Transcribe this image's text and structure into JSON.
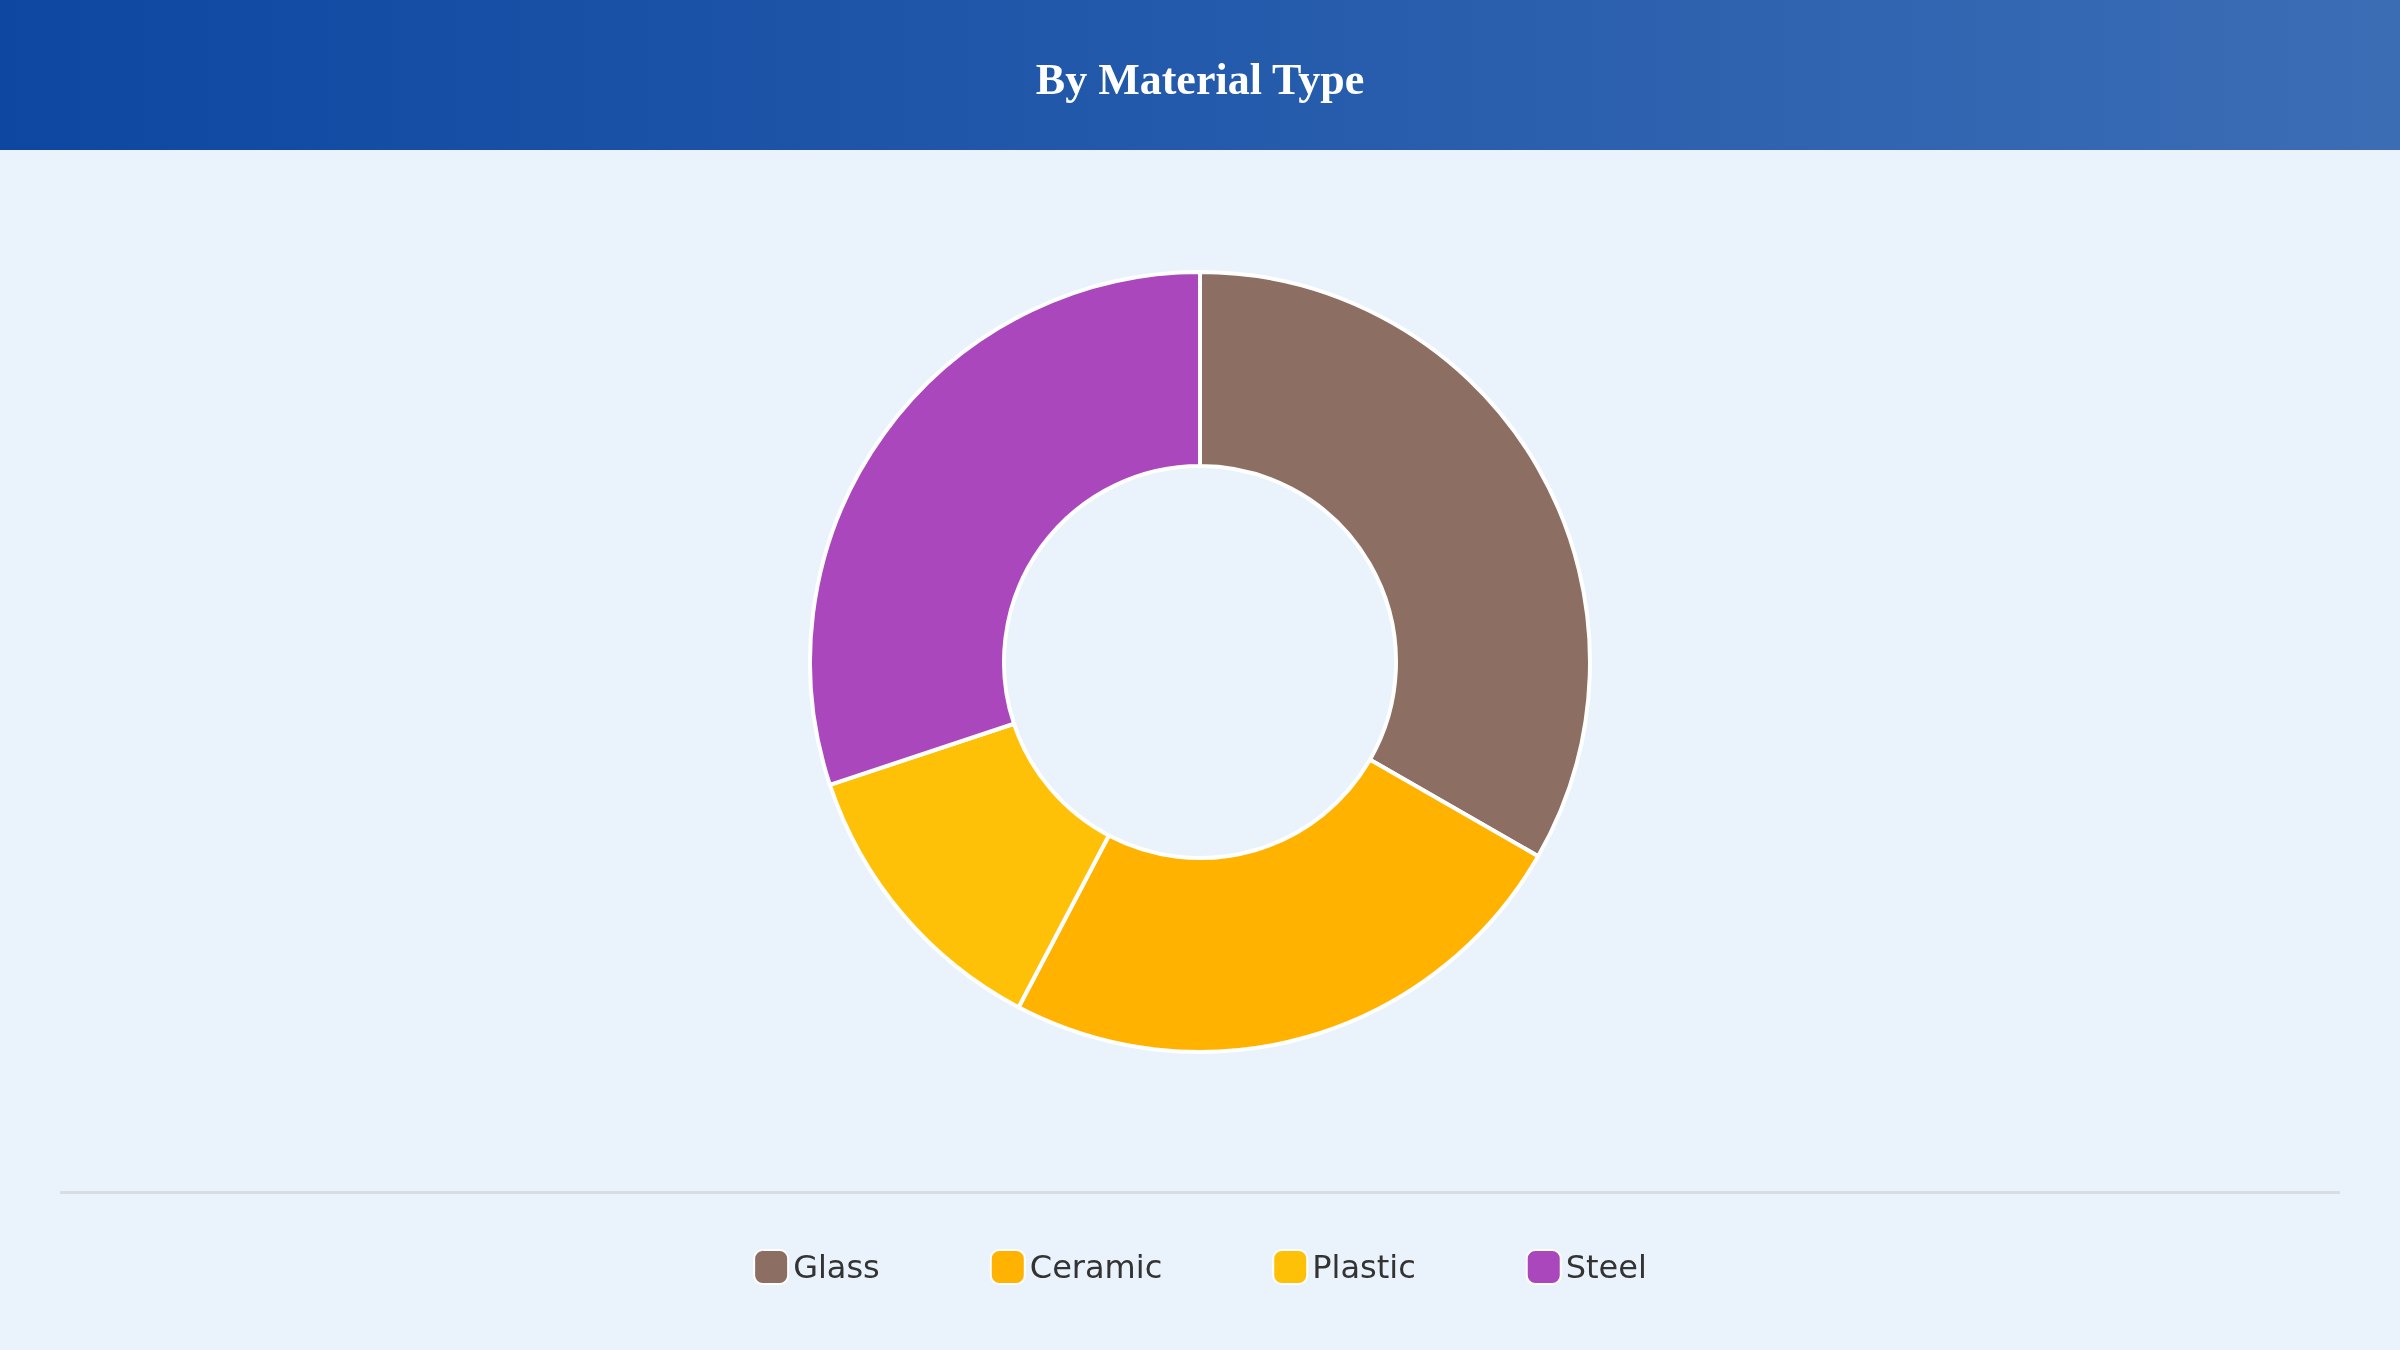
{
  "chart_data": {
    "type": "donut",
    "title": "By Material Type",
    "categories": [
      "Glass",
      "Ceramic",
      "Plastic",
      "Steel"
    ],
    "values": [
      33.3,
      24.4,
      12.2,
      30.1
    ],
    "colors": [
      "#8d6e63",
      "#ffb300",
      "#ffc107",
      "#ab47bc"
    ],
    "legend": "bottom"
  }
}
